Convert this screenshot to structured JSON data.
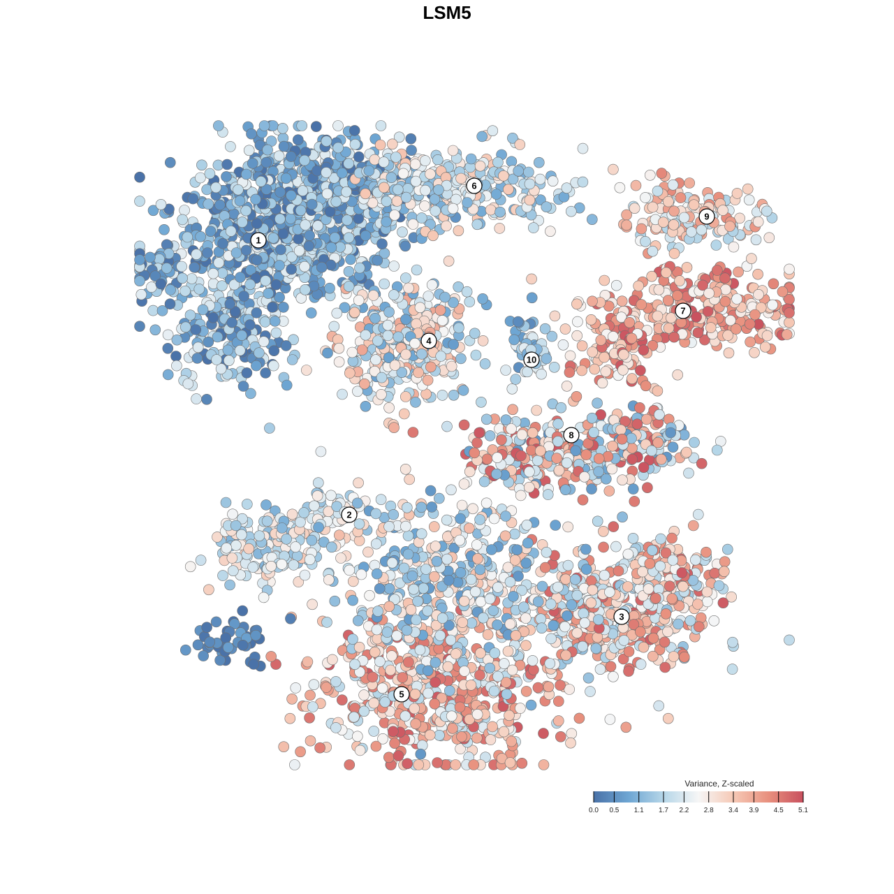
{
  "chart_data": {
    "type": "scatter",
    "title": "LSM5",
    "xlabel": "",
    "ylabel": "",
    "grid": false,
    "color_scale": {
      "title": "Variance, Z-scaled",
      "min": 0.0,
      "max": 5.1,
      "ticks": [
        "0.0",
        "0.5",
        "1.1",
        "1.7",
        "2.2",
        "2.8",
        "3.4",
        "3.9",
        "4.5",
        "5.1"
      ],
      "colors": [
        "#4a72a8",
        "#6ea6d3",
        "#b6d6e8",
        "#f6f6f6",
        "#f6c9b6",
        "#e8907e",
        "#c8505e"
      ],
      "placement": "bottom-right"
    },
    "clusters": [
      {
        "label": "1",
        "mean_value": 1.0
      },
      {
        "label": "2",
        "mean_value": 2.0
      },
      {
        "label": "3",
        "mean_value": 2.9
      },
      {
        "label": "4",
        "mean_value": 2.4
      },
      {
        "label": "5",
        "mean_value": 3.1
      },
      {
        "label": "6",
        "mean_value": 2.1
      },
      {
        "label": "7",
        "mean_value": 3.3
      },
      {
        "label": "8",
        "mean_value": 3.2
      },
      {
        "label": "9",
        "mean_value": 2.6
      },
      {
        "label": "10",
        "mean_value": 1.5
      }
    ]
  }
}
